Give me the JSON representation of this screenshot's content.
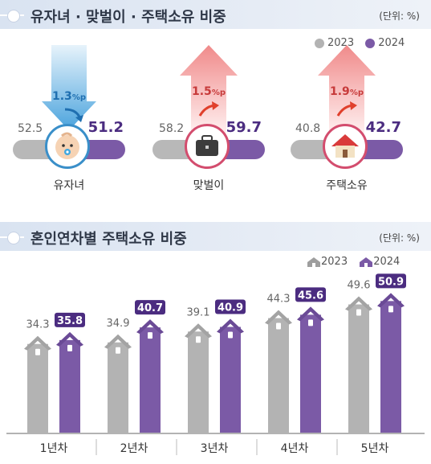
{
  "section1": {
    "title": "유자녀 · 맞벌이 · 주택소유 비중",
    "unit": "(단위: %)",
    "legend_2023": "2023",
    "legend_2024": "2024",
    "items": [
      {
        "label": "유자녀",
        "v2023": "52.5",
        "v2024": "51.2",
        "change": "1.3",
        "change_unit": "%p",
        "direction": "down",
        "icon": "baby-icon"
      },
      {
        "label": "맞벌이",
        "v2023": "58.2",
        "v2024": "59.7",
        "change": "1.5",
        "change_unit": "%p",
        "direction": "up",
        "icon": "briefcase-icon"
      },
      {
        "label": "주택소유",
        "v2023": "40.8",
        "v2024": "42.7",
        "change": "1.9",
        "change_unit": "%p",
        "direction": "up",
        "icon": "house-icon"
      }
    ]
  },
  "section2": {
    "title": "혼인연차별 주택소유 비중",
    "unit": "(단위: %)",
    "legend_2023": "2023",
    "legend_2024": "2024"
  },
  "colors": {
    "gray": "#b3b3b3",
    "purple": "#7b5aa6",
    "dark_purple": "#4b2c80",
    "header": "#d9e3f1",
    "up": "#f08a8a",
    "down": "#4aa3dd"
  },
  "chart_data": {
    "type": "bar",
    "categories": [
      "1년차",
      "2년차",
      "3년차",
      "4년차",
      "5년차"
    ],
    "series": [
      {
        "name": "2023",
        "values": [
          34.3,
          34.9,
          39.1,
          44.3,
          49.6
        ]
      },
      {
        "name": "2024",
        "values": [
          35.8,
          40.7,
          40.9,
          45.6,
          50.9
        ]
      }
    ],
    "ylim": [
      0,
      55
    ],
    "grid": false,
    "legend": "top-right"
  }
}
